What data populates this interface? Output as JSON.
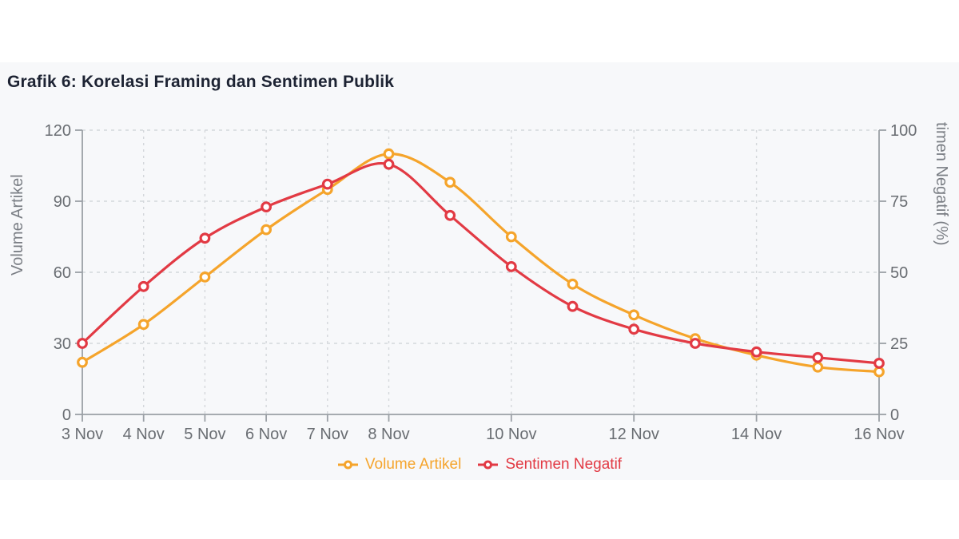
{
  "chart_data": {
    "type": "line",
    "title": "Grafik 6: Korelasi Framing dan Sentimen Publik",
    "x": [
      "3 Nov",
      "4 Nov",
      "5 Nov",
      "6 Nov",
      "7 Nov",
      "8 Nov",
      "9 Nov",
      "10 Nov",
      "11 Nov",
      "12 Nov",
      "13 Nov",
      "14 Nov",
      "15 Nov",
      "16 Nov"
    ],
    "x_ticks": [
      {
        "i": 0,
        "label": "3 Nov"
      },
      {
        "i": 1,
        "label": "4 Nov"
      },
      {
        "i": 2,
        "label": "5 Nov"
      },
      {
        "i": 3,
        "label": "6 Nov"
      },
      {
        "i": 4,
        "label": "7 Nov"
      },
      {
        "i": 5,
        "label": "8 Nov"
      },
      {
        "i": 7,
        "label": "10 Nov"
      },
      {
        "i": 9,
        "label": "12 Nov"
      },
      {
        "i": 11,
        "label": "14 Nov"
      },
      {
        "i": 13,
        "label": "16 Nov"
      }
    ],
    "series": [
      {
        "name": "Volume Artikel",
        "axis": "left",
        "color": "#F5A42B",
        "values": [
          22,
          38,
          58,
          78,
          95,
          110,
          98,
          75,
          55,
          42,
          32,
          25,
          20,
          18
        ]
      },
      {
        "name": "Sentimen Negatif",
        "axis": "right",
        "color": "#E23A44",
        "values": [
          25,
          45,
          62,
          73,
          81,
          88,
          70,
          52,
          38,
          30,
          25,
          22,
          20,
          18
        ]
      }
    ],
    "left_axis": {
      "label": "Volume Artikel",
      "range": [
        0,
        120
      ],
      "ticks": [
        0,
        30,
        60,
        90,
        120
      ]
    },
    "right_axis": {
      "label": "timen Negatif (%)",
      "range": [
        0,
        100
      ],
      "ticks": [
        0,
        25,
        50,
        75,
        100
      ]
    },
    "legend": {
      "position": "bottom"
    },
    "grid": true,
    "colors": {
      "panel_bg": "#f7f8fa",
      "title": "#1d2333",
      "gridline": "#d4d7db",
      "axis_line": "#9ba0a6",
      "tick_label": "#696d72",
      "axis_title": "#7a7e84"
    }
  }
}
